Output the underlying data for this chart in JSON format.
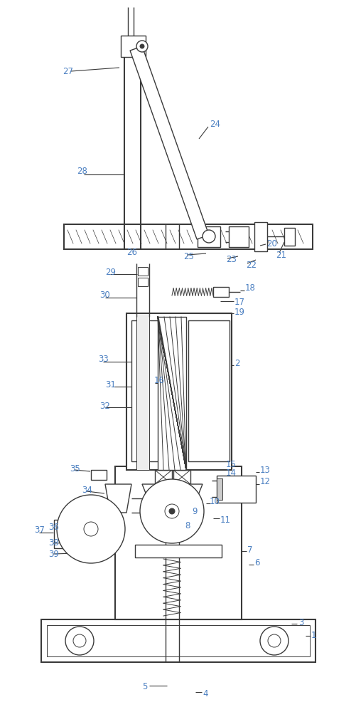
{
  "bg_color": "#ffffff",
  "line_color": "#3a3a3a",
  "label_color": "#4a7fc1",
  "fig_width": 5.02,
  "fig_height": 10.0,
  "dpi": 100
}
